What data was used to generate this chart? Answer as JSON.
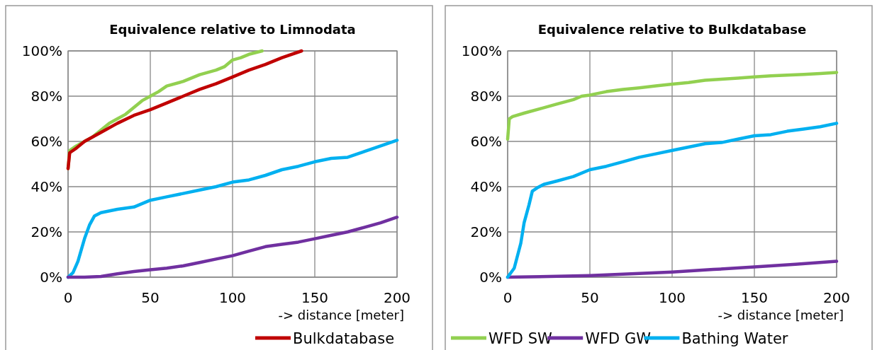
{
  "chart_data": [
    {
      "type": "line",
      "title": "Equivalence relative to Limnodata",
      "xlabel": "-> distance [meter]",
      "xlim": [
        0,
        200
      ],
      "xticks": [
        0,
        50,
        100,
        150,
        200
      ],
      "ylim": [
        0,
        100
      ],
      "yticks": [
        {
          "value": 0,
          "label": "0%"
        },
        {
          "value": 20,
          "label": "20%"
        },
        {
          "value": 40,
          "label": "40%"
        },
        {
          "value": 60,
          "label": "60%"
        },
        {
          "value": 80,
          "label": "80%"
        },
        {
          "value": 100,
          "label": "100%"
        }
      ],
      "grid": true,
      "legend": "bottom",
      "series": [
        {
          "color": "#92d050",
          "x": [
            0,
            1,
            5,
            10,
            15,
            20,
            25,
            30,
            35,
            40,
            45,
            50,
            55,
            60,
            70,
            80,
            90,
            95,
            100,
            105,
            110,
            118
          ],
          "values": [
            48,
            56,
            58,
            60,
            62,
            65,
            68,
            70,
            72,
            75,
            78,
            80,
            82,
            84.5,
            86.5,
            89.5,
            91.5,
            93,
            96,
            97,
            98.5,
            100
          ]
        },
        {
          "name": "Bulkdatabase",
          "color": "#c00000",
          "x": [
            0,
            1,
            5,
            10,
            20,
            30,
            40,
            50,
            60,
            70,
            80,
            90,
            100,
            110,
            120,
            130,
            142
          ],
          "values": [
            48,
            55,
            57,
            60,
            64,
            68,
            71.5,
            74,
            77,
            80,
            83,
            85.5,
            88.5,
            91.5,
            94,
            97,
            100
          ]
        },
        {
          "color": "#00b0f0",
          "x": [
            0,
            3,
            6,
            10,
            13,
            16,
            20,
            30,
            40,
            50,
            60,
            70,
            80,
            90,
            100,
            110,
            120,
            130,
            140,
            150,
            160,
            170,
            180,
            190,
            200
          ],
          "values": [
            0,
            2,
            7,
            17,
            23,
            27,
            28.5,
            30,
            31,
            34,
            35.5,
            37,
            38.5,
            40,
            42,
            43,
            45,
            47.5,
            49,
            51,
            52.5,
            53,
            55.5,
            58,
            60.5
          ]
        },
        {
          "color": "#7030a0",
          "x": [
            0,
            10,
            20,
            30,
            40,
            50,
            60,
            70,
            80,
            90,
            100,
            110,
            120,
            130,
            140,
            150,
            160,
            170,
            180,
            190,
            200
          ],
          "values": [
            0,
            0,
            0.3,
            1.5,
            2.5,
            3.3,
            4,
            5,
            6.5,
            8,
            9.5,
            11.5,
            13.5,
            14.5,
            15.5,
            17,
            18.5,
            20,
            22,
            24,
            26.5
          ]
        }
      ]
    },
    {
      "type": "line",
      "title": "Equivalence relative to Bulkdatabase",
      "xlabel": "-> distance [meter]",
      "xlim": [
        0,
        200
      ],
      "xticks": [
        0,
        50,
        100,
        150,
        200
      ],
      "ylim": [
        0,
        100
      ],
      "yticks": [
        {
          "value": 0,
          "label": "0%"
        },
        {
          "value": 20,
          "label": "20%"
        },
        {
          "value": 40,
          "label": "40%"
        },
        {
          "value": 60,
          "label": "60%"
        },
        {
          "value": 80,
          "label": "80%"
        },
        {
          "value": 100,
          "label": "100%"
        }
      ],
      "grid": true,
      "legend": "bottom",
      "series": [
        {
          "name": "WFD SW",
          "color": "#92d050",
          "x": [
            0,
            1,
            3,
            10,
            20,
            30,
            40,
            45,
            50,
            60,
            70,
            80,
            90,
            100,
            110,
            120,
            130,
            140,
            150,
            160,
            170,
            180,
            190,
            200
          ],
          "values": [
            61,
            70,
            71,
            72.5,
            74.5,
            76.5,
            78.5,
            80,
            80.5,
            82,
            83,
            83.7,
            84.5,
            85.3,
            86,
            87,
            87.5,
            88,
            88.5,
            89,
            89.3,
            89.6,
            90,
            90.5
          ]
        },
        {
          "name": "WFD GW",
          "color": "#7030a0",
          "x": [
            0,
            25,
            50,
            75,
            100,
            125,
            150,
            175,
            200
          ],
          "values": [
            0,
            0.3,
            0.7,
            1.5,
            2.3,
            3.4,
            4.5,
            5.7,
            7
          ]
        },
        {
          "name": "Bathing Water",
          "color": "#00b0f0",
          "x": [
            0,
            4,
            8,
            10,
            13,
            15,
            18,
            22,
            30,
            40,
            50,
            60,
            70,
            80,
            90,
            100,
            110,
            120,
            130,
            140,
            150,
            160,
            170,
            180,
            190,
            200
          ],
          "values": [
            0,
            4,
            15,
            24,
            32,
            38,
            39.5,
            41,
            42.5,
            44.5,
            47.5,
            49,
            51,
            53,
            54.5,
            56,
            57.5,
            59,
            59.5,
            61,
            62.5,
            63,
            64.5,
            65.5,
            66.5,
            68
          ]
        }
      ]
    }
  ]
}
